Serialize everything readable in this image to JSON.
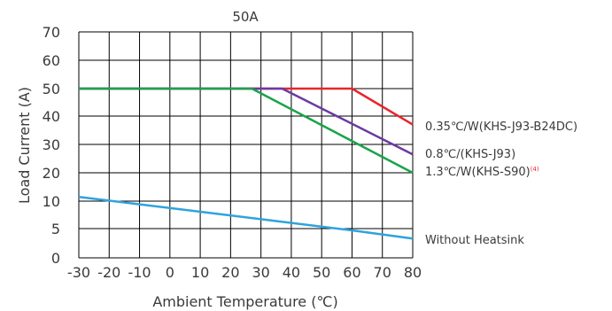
{
  "chart_data": {
    "type": "line",
    "title": "50A",
    "xlabel": "Ambient Temperature (℃)",
    "ylabel": "Load Current (A)",
    "xlim": [
      -30,
      80
    ],
    "ylim": [
      0,
      70
    ],
    "x_ticks": [
      "-30",
      "-20",
      "-10",
      "0",
      "10",
      "20",
      "30",
      "40",
      "50",
      "60",
      "70",
      "80"
    ],
    "y_ticks": [
      "0",
      "5",
      "10",
      "20",
      "30",
      "40",
      "50",
      "60",
      "70"
    ],
    "grid": true,
    "legend_position": "right",
    "series": [
      {
        "name": "0.35℃/W(KHS-J93-B24DC)",
        "color": "#e8262b",
        "points": [
          [
            -30,
            50
          ],
          [
            60,
            50
          ],
          [
            80,
            37
          ]
        ]
      },
      {
        "name": "0.8℃/(KHS-J93)",
        "color": "#6b3aa3",
        "points": [
          [
            -30,
            50
          ],
          [
            37,
            50
          ],
          [
            80,
            26.5
          ]
        ]
      },
      {
        "name": "1.3℃/W(KHS-S90)",
        "note": "(4)",
        "color": "#1aa34a",
        "points": [
          [
            -30,
            50
          ],
          [
            27,
            50
          ],
          [
            80,
            20
          ]
        ]
      },
      {
        "name": "Without Heatsink",
        "color": "#2ea3dc",
        "points": [
          [
            -30,
            11.5
          ],
          [
            60,
            5
          ],
          [
            80,
            3.5
          ]
        ]
      }
    ]
  }
}
